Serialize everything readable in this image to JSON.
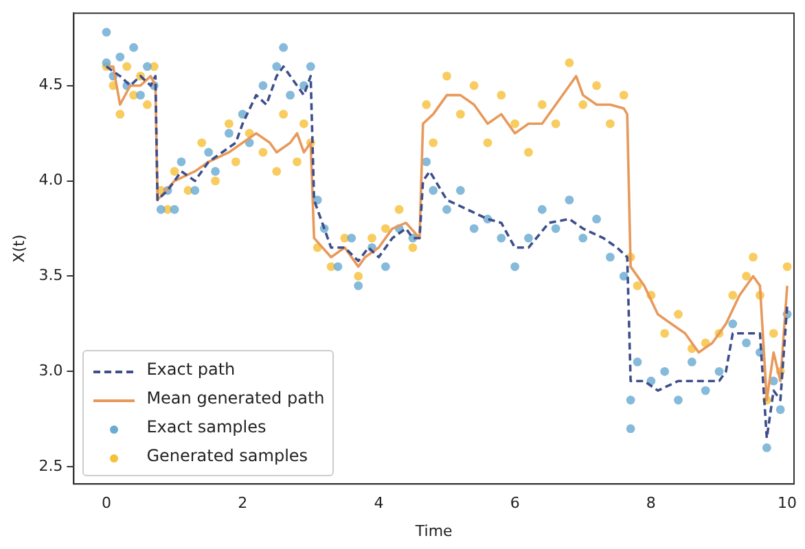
{
  "chart_data": {
    "type": "line",
    "xlabel": "Time",
    "ylabel": "X(t)",
    "xlim": [
      -0.48,
      10.1
    ],
    "ylim": [
      2.41,
      4.88
    ],
    "xticks": [
      0,
      2,
      4,
      6,
      8,
      10
    ],
    "yticks": [
      2.5,
      {
        "value": 3,
        "label": "3.0"
      },
      3.5,
      {
        "value": 4,
        "label": "4.0"
      },
      4.5
    ],
    "grid": false,
    "legend": "bottom left",
    "series": [
      {
        "name": "Exact path",
        "line_style": "dashed",
        "marker": "none",
        "color": "#3d4e8a",
        "x": [
          0,
          0.2,
          0.35,
          0.5,
          0.65,
          0.72,
          0.75,
          0.9,
          1.1,
          1.3,
          1.5,
          1.7,
          1.9,
          2.0,
          2.2,
          2.35,
          2.5,
          2.6,
          2.8,
          2.9,
          3.0,
          3.05,
          3.15,
          3.3,
          3.5,
          3.7,
          3.85,
          4.0,
          4.2,
          4.4,
          4.5,
          4.6,
          4.65,
          4.75,
          5.0,
          5.3,
          5.6,
          5.8,
          6.0,
          6.2,
          6.5,
          6.8,
          7.0,
          7.3,
          7.5,
          7.65,
          7.7,
          7.9,
          8.1,
          8.4,
          8.7,
          9.0,
          9.1,
          9.2,
          9.4,
          9.6,
          9.7,
          9.8,
          9.9,
          10.0
        ],
        "values": [
          4.6,
          4.55,
          4.5,
          4.55,
          4.5,
          4.55,
          3.9,
          3.95,
          4.05,
          4.0,
          4.1,
          4.15,
          4.2,
          4.3,
          4.45,
          4.4,
          4.55,
          4.6,
          4.5,
          4.45,
          4.55,
          3.9,
          3.8,
          3.65,
          3.65,
          3.58,
          3.65,
          3.6,
          3.7,
          3.75,
          3.7,
          3.7,
          4.0,
          4.05,
          3.9,
          3.85,
          3.8,
          3.78,
          3.65,
          3.65,
          3.78,
          3.8,
          3.75,
          3.7,
          3.65,
          3.6,
          2.95,
          2.95,
          2.9,
          2.95,
          2.95,
          2.95,
          3.0,
          3.2,
          3.2,
          3.2,
          2.65,
          2.9,
          2.85,
          3.35
        ]
      },
      {
        "name": "Mean generated path",
        "line_style": "solid",
        "marker": "none",
        "color": "#e8995a",
        "x": [
          0,
          0.1,
          0.2,
          0.35,
          0.5,
          0.65,
          0.72,
          0.75,
          1.0,
          1.3,
          1.5,
          1.8,
          2.0,
          2.2,
          2.4,
          2.5,
          2.7,
          2.8,
          2.9,
          3.0,
          3.05,
          3.3,
          3.5,
          3.7,
          3.8,
          4.0,
          4.2,
          4.4,
          4.6,
          4.65,
          4.8,
          5.0,
          5.2,
          5.4,
          5.6,
          5.8,
          6.0,
          6.2,
          6.4,
          6.6,
          6.8,
          6.9,
          7.0,
          7.2,
          7.4,
          7.6,
          7.65,
          7.7,
          7.9,
          8.1,
          8.3,
          8.5,
          8.7,
          8.9,
          9.1,
          9.3,
          9.5,
          9.6,
          9.7,
          9.8,
          9.9,
          10.0
        ],
        "values": [
          4.6,
          4.6,
          4.4,
          4.5,
          4.5,
          4.55,
          4.5,
          3.9,
          4.0,
          4.05,
          4.1,
          4.15,
          4.2,
          4.25,
          4.2,
          4.15,
          4.2,
          4.25,
          4.15,
          4.2,
          3.7,
          3.6,
          3.65,
          3.55,
          3.6,
          3.65,
          3.75,
          3.78,
          3.7,
          4.3,
          4.35,
          4.45,
          4.45,
          4.4,
          4.3,
          4.35,
          4.25,
          4.3,
          4.3,
          4.4,
          4.5,
          4.55,
          4.45,
          4.4,
          4.4,
          4.38,
          4.35,
          3.55,
          3.45,
          3.3,
          3.25,
          3.2,
          3.1,
          3.15,
          3.25,
          3.4,
          3.5,
          3.45,
          2.85,
          3.1,
          2.95,
          3.45
        ]
      },
      {
        "name": "Exact samples",
        "type": "scatter",
        "marker": "circle",
        "color": "#6aabd2",
        "x": [
          0,
          0,
          0.1,
          0.2,
          0.3,
          0.4,
          0.5,
          0.6,
          0.7,
          0.8,
          0.9,
          1.0,
          1.1,
          1.3,
          1.5,
          1.6,
          1.8,
          2.0,
          2.1,
          2.3,
          2.5,
          2.6,
          2.7,
          2.9,
          3.0,
          3.1,
          3.2,
          3.4,
          3.6,
          3.7,
          3.9,
          4.1,
          4.3,
          4.5,
          4.7,
          4.8,
          5.0,
          5.2,
          5.4,
          5.6,
          5.8,
          6.0,
          6.2,
          6.4,
          6.6,
          6.8,
          7.0,
          7.2,
          7.4,
          7.6,
          7.7,
          7.7,
          7.8,
          8.0,
          8.2,
          8.4,
          8.6,
          8.8,
          9.0,
          9.2,
          9.4,
          9.6,
          9.7,
          9.8,
          9.9,
          10.0
        ],
        "values": [
          4.62,
          4.78,
          4.55,
          4.65,
          4.5,
          4.7,
          4.45,
          4.6,
          4.5,
          3.85,
          3.95,
          3.85,
          4.1,
          3.95,
          4.15,
          4.05,
          4.25,
          4.35,
          4.2,
          4.5,
          4.6,
          4.7,
          4.45,
          4.5,
          4.6,
          3.9,
          3.75,
          3.55,
          3.7,
          3.45,
          3.65,
          3.55,
          3.75,
          3.7,
          4.1,
          3.95,
          3.85,
          3.95,
          3.75,
          3.8,
          3.7,
          3.55,
          3.7,
          3.85,
          3.75,
          3.9,
          3.7,
          3.8,
          3.6,
          3.5,
          2.7,
          2.85,
          3.05,
          2.95,
          3.0,
          2.85,
          3.05,
          2.9,
          3.0,
          3.25,
          3.15,
          3.1,
          2.6,
          2.95,
          2.8,
          3.3
        ]
      },
      {
        "name": "Generated samples",
        "type": "scatter",
        "marker": "circle",
        "color": "#f6c13a",
        "x": [
          0,
          0.1,
          0.2,
          0.3,
          0.4,
          0.5,
          0.6,
          0.7,
          0.8,
          0.9,
          1.0,
          1.2,
          1.4,
          1.6,
          1.8,
          1.9,
          2.1,
          2.3,
          2.5,
          2.6,
          2.8,
          2.9,
          3.0,
          3.1,
          3.3,
          3.5,
          3.7,
          3.9,
          4.1,
          4.3,
          4.5,
          4.7,
          4.8,
          5.0,
          5.2,
          5.4,
          5.6,
          5.8,
          6.0,
          6.2,
          6.4,
          6.6,
          6.8,
          7.0,
          7.2,
          7.4,
          7.6,
          7.7,
          7.8,
          8.0,
          8.2,
          8.4,
          8.6,
          8.8,
          9.0,
          9.2,
          9.4,
          9.5,
          9.6,
          9.7,
          9.8,
          9.9,
          10.0
        ],
        "values": [
          4.6,
          4.5,
          4.35,
          4.6,
          4.45,
          4.55,
          4.4,
          4.6,
          3.95,
          3.85,
          4.05,
          3.95,
          4.2,
          4.0,
          4.3,
          4.1,
          4.25,
          4.15,
          4.05,
          4.35,
          4.1,
          4.3,
          4.2,
          3.65,
          3.55,
          3.7,
          3.5,
          3.7,
          3.75,
          3.85,
          3.65,
          4.4,
          4.2,
          4.55,
          4.35,
          4.5,
          4.2,
          4.45,
          4.3,
          4.15,
          4.4,
          4.3,
          4.62,
          4.4,
          4.5,
          4.3,
          4.45,
          3.6,
          3.45,
          3.4,
          3.2,
          3.3,
          3.12,
          3.15,
          3.2,
          3.4,
          3.5,
          3.6,
          3.4,
          2.85,
          3.2,
          3.0,
          3.55
        ]
      }
    ]
  }
}
